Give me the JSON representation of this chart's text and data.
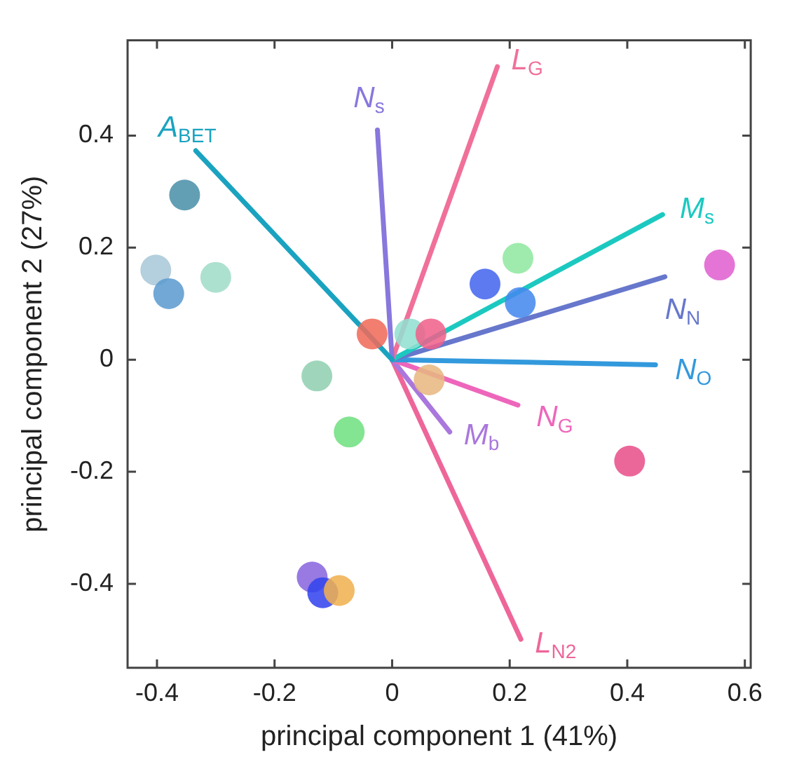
{
  "chart_data": {
    "type": "scatter",
    "xlabel": "principal component 1 (41%)",
    "ylabel": "principal component 2 (27%)",
    "xlim": [
      -0.45,
      0.61
    ],
    "ylim": [
      -0.55,
      0.57
    ],
    "xticks": [
      -0.4,
      -0.2,
      0,
      0.2,
      0.4,
      0.6
    ],
    "yticks": [
      -0.4,
      -0.2,
      0,
      0.2,
      0.4
    ],
    "grid": false,
    "legend": false,
    "series": [
      {
        "type": "line",
        "name": "A$_{BET}$",
        "color": "#1aa3c0",
        "x": [
          0,
          -0.334
        ],
        "values": [
          0,
          0.373
        ],
        "marker": "none"
      },
      {
        "type": "line",
        "name": "N$_{s}$",
        "color": "#8877dd",
        "x": [
          0,
          -0.025
        ],
        "values": [
          0,
          0.41
        ],
        "marker": "none"
      },
      {
        "type": "line",
        "name": "L$_{G}$",
        "color": "#f0709a",
        "x": [
          0,
          0.179
        ],
        "values": [
          0,
          0.523
        ],
        "marker": "none"
      },
      {
        "type": "line",
        "name": "M$_{s}$",
        "color": "#1cc9c0",
        "x": [
          0,
          0.46
        ],
        "values": [
          0,
          0.259
        ],
        "marker": "none"
      },
      {
        "type": "line",
        "name": "N$_{N}$",
        "color": "#6677cc",
        "x": [
          0,
          0.464
        ],
        "values": [
          0,
          0.148
        ],
        "marker": "none"
      },
      {
        "type": "line",
        "name": "N$_{O}$",
        "color": "#3399dd",
        "x": [
          0,
          0.448
        ],
        "values": [
          0,
          -0.009
        ],
        "marker": "none"
      },
      {
        "type": "line",
        "name": "N$_{G}$",
        "color": "#ee66bb",
        "x": [
          0,
          0.214
        ],
        "values": [
          0,
          -0.081
        ],
        "marker": "none"
      },
      {
        "type": "line",
        "name": "M$_{b}$",
        "color": "#aa77dd",
        "x": [
          0,
          0.098
        ],
        "values": [
          0,
          -0.129
        ],
        "marker": "none"
      },
      {
        "type": "line",
        "name": "L$_{N2}$",
        "color": "#ee6699",
        "x": [
          0,
          0.219
        ],
        "values": [
          0,
          -0.499
        ],
        "marker": "none"
      },
      {
        "type": "scatter",
        "marker": "circle",
        "x": [
          -0.353,
          -0.402,
          -0.38,
          -0.3,
          -0.034,
          0.03,
          0.066,
          0.158,
          0.214,
          0.218,
          0.557,
          -0.128,
          0.063,
          -0.073,
          0.404,
          -0.136,
          -0.118,
          -0.09
        ],
        "values": [
          0.294,
          0.16,
          0.118,
          0.147,
          0.046,
          0.046,
          0.046,
          0.135,
          0.181,
          0.102,
          0.169,
          -0.029,
          -0.036,
          -0.129,
          -0.181,
          -0.388,
          -0.416,
          -0.412
        ],
        "colors": [
          "#4a90a8",
          "#a8c8d8",
          "#5b9bd0",
          "#a0dcc8",
          "#f06a5a",
          "#90e0d0",
          "#f0608a",
          "#4466ee",
          "#90e8a0",
          "#4488ee",
          "#e060d0",
          "#90d0b0",
          "#e8b880",
          "#70e080",
          "#e8508a",
          "#8866dd",
          "#3344ee",
          "#f0b050"
        ]
      }
    ]
  }
}
